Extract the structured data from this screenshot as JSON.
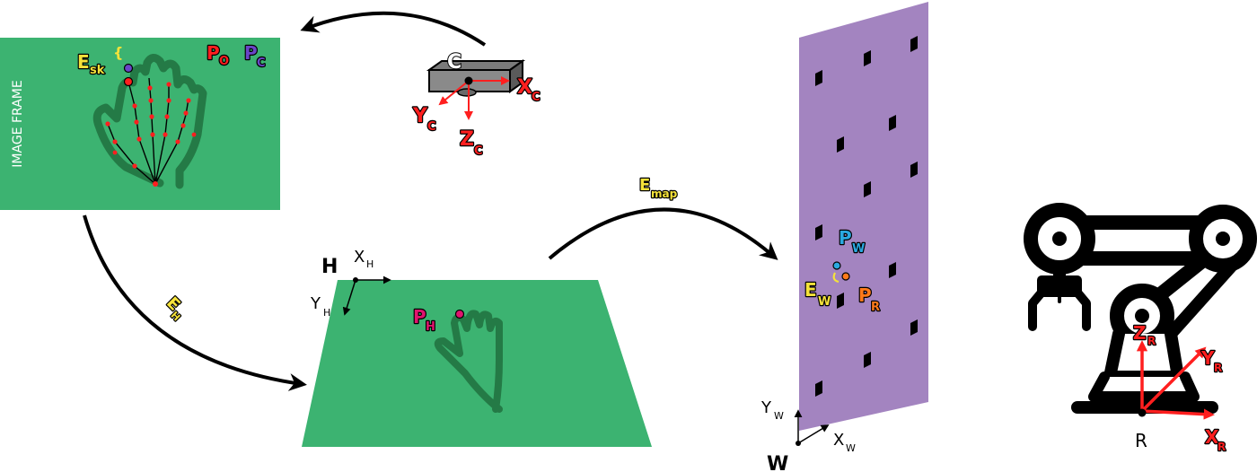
{
  "colors": {
    "green": "#3cb371",
    "hand": "#247a46",
    "purple": "#a384c0",
    "red": "#ff1f1f",
    "yellow": "#f5e23a",
    "blue": "#2aa9e0",
    "orange": "#ff7a1a",
    "pink": "#e0146e",
    "indigo": "#6a45c8",
    "black": "#000000"
  },
  "image_frame": {
    "title": "IMAGE FRAME",
    "e_sk": {
      "main": "E",
      "sub": "sk"
    },
    "p_o": {
      "main": "P",
      "sub": "O"
    },
    "p_c": {
      "main": "P",
      "sub": "C"
    }
  },
  "camera": {
    "label": "C",
    "x_axis": {
      "main": "X",
      "sub": "C"
    },
    "y_axis": {
      "main": "Y",
      "sub": "C"
    },
    "z_axis": {
      "main": "Z",
      "sub": "C"
    }
  },
  "hand_plane": {
    "origin": "H",
    "x_axis": {
      "main": "X",
      "sub": "H"
    },
    "y_axis": {
      "main": "Y",
      "sub": "H"
    },
    "p_h": {
      "main": "P",
      "sub": "H"
    }
  },
  "transforms": {
    "e_h": {
      "main": "E",
      "sub": "H"
    },
    "e_map": {
      "main": "E",
      "sub": "map"
    }
  },
  "world_wall": {
    "origin": "W",
    "x_axis": {
      "main": "X",
      "sub": "W"
    },
    "y_axis": {
      "main": "Y",
      "sub": "W"
    },
    "p_w": {
      "main": "P",
      "sub": "W"
    },
    "p_r": {
      "main": "P",
      "sub": "R"
    },
    "e_w": {
      "main": "E",
      "sub": "W"
    }
  },
  "robot": {
    "origin": "R",
    "x_axis": {
      "main": "X",
      "sub": "R"
    },
    "y_axis": {
      "main": "Y",
      "sub": "R"
    },
    "z_axis": {
      "main": "Z",
      "sub": "R"
    }
  }
}
